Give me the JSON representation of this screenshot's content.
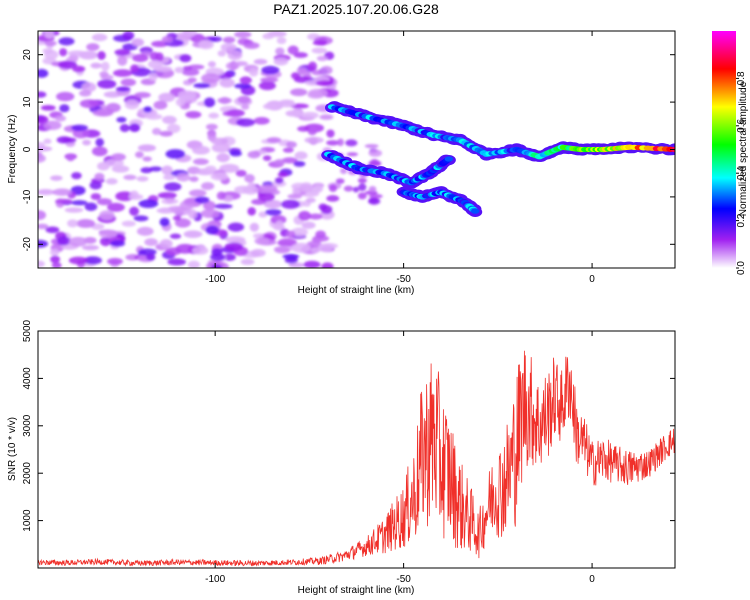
{
  "title": "PAZ1.2025.107.20.06.G28",
  "chart_data": [
    {
      "type": "heatmap",
      "xlabel": "Height of straight line (km)",
      "ylabel": "Frequency (Hz)",
      "xlim": [
        -147,
        22
      ],
      "ylim": [
        -25,
        25
      ],
      "xticks": [
        -100,
        -50,
        0
      ],
      "yticks": [
        -20,
        -10,
        0,
        10,
        20
      ],
      "grid": false,
      "noise_region_x": [
        -147,
        -69
      ],
      "tracks": [
        {
          "x": [
            -69,
            -60,
            -50,
            -42,
            -35,
            -28,
            -20,
            -14,
            -8,
            -3,
            3,
            10,
            22
          ],
          "y": [
            9,
            7,
            5,
            3,
            2,
            -1,
            0,
            -1.5,
            0.5,
            0,
            0,
            0.5,
            0
          ]
        },
        {
          "x": [
            -70,
            -62,
            -55,
            -48,
            -43,
            -38
          ],
          "y": [
            -1,
            -4,
            -5,
            -7,
            -5,
            -2
          ]
        },
        {
          "x": [
            -50,
            -45,
            -40,
            -34,
            -31
          ],
          "y": [
            -9,
            -10,
            -9,
            -11,
            -13
          ]
        }
      ],
      "colorbar": {
        "label": "Normalized spectral amplitude",
        "range": [
          0.0,
          1.0
        ],
        "ticks": [
          "0.0",
          "0.2",
          "0.4",
          "0.6",
          "0.8"
        ],
        "stops": [
          "#ffffff",
          "#a020f0",
          "#0000ff",
          "#00ffff",
          "#00ff00",
          "#ffff00",
          "#ff0000",
          "#ff00ff"
        ]
      }
    },
    {
      "type": "line",
      "xlabel": "Height of straight line (km)",
      "ylabel": "SNR (10 * v/v)",
      "xlim": [
        -147,
        22
      ],
      "ylim": [
        0,
        5000
      ],
      "xticks": [
        -100,
        -50,
        0
      ],
      "yticks": [
        1000,
        2000,
        3000,
        4000,
        5000
      ],
      "color": "#f0302a",
      "series": [
        {
          "x": [
            -147,
            -140,
            -130,
            -120,
            -110,
            -100,
            -90,
            -80,
            -72,
            -66,
            -60,
            -55,
            -50,
            -47,
            -45,
            -42,
            -40,
            -38,
            -36,
            -34,
            -32,
            -30,
            -28,
            -26,
            -24,
            -22,
            -20,
            -18,
            -16,
            -14,
            -12,
            -10,
            -8,
            -6,
            -4,
            -2,
            0,
            3,
            6,
            10,
            15,
            20,
            22
          ],
          "y": [
            120,
            110,
            130,
            100,
            120,
            110,
            100,
            120,
            150,
            250,
            450,
            700,
            1100,
            1600,
            2400,
            2800,
            2200,
            2000,
            1500,
            1200,
            1000,
            700,
            1200,
            1600,
            1700,
            2000,
            2600,
            3500,
            3300,
            3000,
            3200,
            3600,
            3400,
            4000,
            2800,
            2600,
            2200,
            2300,
            2200,
            2100,
            2200,
            2600,
            2700
          ],
          "amp": [
            60,
            60,
            60,
            60,
            60,
            60,
            60,
            60,
            80,
            120,
            200,
            400,
            700,
            1100,
            1600,
            1900,
            1600,
            1400,
            1100,
            900,
            700,
            500,
            700,
            900,
            1100,
            1300,
            1700,
            1400,
            1200,
            1000,
            1000,
            900,
            800,
            900,
            700,
            600,
            500,
            500,
            400,
            400,
            300,
            300,
            300
          ]
        }
      ]
    }
  ]
}
